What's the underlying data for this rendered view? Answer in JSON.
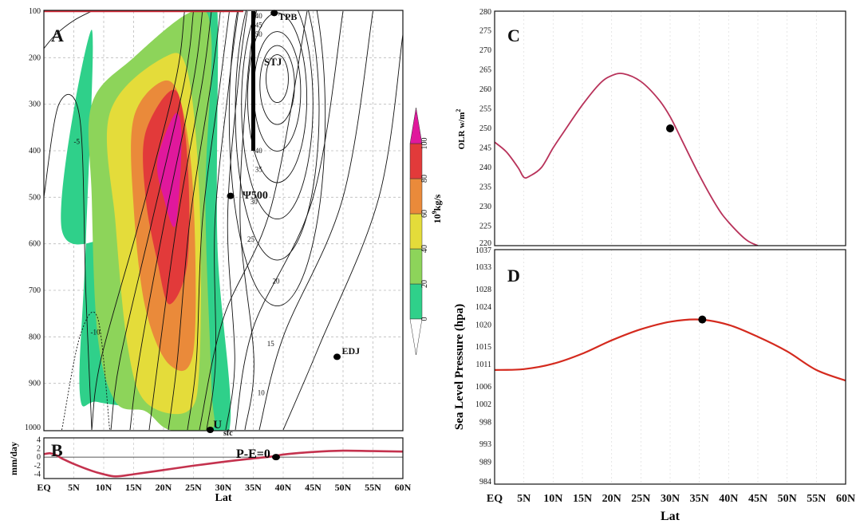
{
  "chart_data": [
    {
      "panel": "A",
      "type": "heatmap",
      "y_ticks": [
        "100",
        "200",
        "300",
        "400",
        "500",
        "600",
        "700",
        "800",
        "900",
        "1000"
      ],
      "colorbar": {
        "label": "10⁹kg/s",
        "ticks": [
          "0",
          "20",
          "40",
          "60",
          "80",
          "100"
        ],
        "colors": [
          "#2fd08a",
          "#8dd45a",
          "#e4dc3a",
          "#ea8a3a",
          "#e23a3a",
          "#e0189c"
        ]
      },
      "shading_levels": [
        {
          "level": 0,
          "color": "#2fd08a",
          "region": [
            [
              3,
              570
            ],
            [
              15,
              570
            ],
            [
              24,
              585
            ],
            [
              26,
              400
            ],
            [
              27,
              100
            ],
            [
              29,
              100
            ],
            [
              29,
              600
            ],
            [
              31,
              1000
            ],
            [
              23,
              1000
            ],
            [
              18,
              960
            ],
            [
              9,
              940
            ],
            [
              6,
              920
            ],
            [
              7,
              600
            ],
            [
              8,
              140
            ]
          ]
        },
        {
          "level": 20,
          "color": "#8dd45a",
          "region": [
            [
              8,
              300
            ],
            [
              15,
              200
            ],
            [
              25,
              100
            ],
            [
              28,
              160
            ],
            [
              27,
              500
            ],
            [
              28,
              900
            ],
            [
              28,
              1000
            ],
            [
              21,
              1000
            ],
            [
              17,
              960
            ],
            [
              12,
              940
            ],
            [
              9,
              800
            ],
            [
              8,
              500
            ]
          ]
        },
        {
          "level": 40,
          "color": "#e4dc3a",
          "region": [
            [
              11,
              320
            ],
            [
              20,
              200
            ],
            [
              24,
              230
            ],
            [
              26,
              500
            ],
            [
              26,
              860
            ],
            [
              24,
              960
            ],
            [
              17,
              940
            ],
            [
              14,
              820
            ],
            [
              12,
              560
            ]
          ]
        },
        {
          "level": 60,
          "color": "#ea8a3a",
          "region": [
            [
              15,
              330
            ],
            [
              20,
              250
            ],
            [
              23,
              300
            ],
            [
              25,
              500
            ],
            [
              25,
              830
            ],
            [
              21,
              860
            ],
            [
              17,
              740
            ],
            [
              15,
              520
            ]
          ]
        },
        {
          "level": 80,
          "color": "#e23a3a",
          "region": [
            [
              17,
              360
            ],
            [
              22,
              270
            ],
            [
              24,
              420
            ],
            [
              24,
              640
            ],
            [
              21,
              730
            ],
            [
              19,
              640
            ],
            [
              17,
              500
            ]
          ]
        },
        {
          "level": 100,
          "color": "#e0189c",
          "region": [
            [
              19,
              420
            ],
            [
              22,
              320
            ],
            [
              23,
              380
            ],
            [
              22,
              560
            ],
            [
              20,
              500
            ]
          ]
        }
      ],
      "u_contour_labels": [
        {
          "text": "40",
          "lat": 35.3,
          "p": 110
        },
        {
          "text": "45",
          "lat": 35.3,
          "p": 130
        },
        {
          "text": "50",
          "lat": 35.3,
          "p": 150
        },
        {
          "text": "40",
          "lat": 35.3,
          "p": 400
        },
        {
          "text": "35",
          "lat": 35.3,
          "p": 440
        },
        {
          "text": "30",
          "lat": 34.5,
          "p": 510
        },
        {
          "text": "25",
          "lat": 34.0,
          "p": 590
        },
        {
          "text": "20",
          "lat": 38.2,
          "p": 680
        },
        {
          "text": "15",
          "lat": 37.3,
          "p": 815
        },
        {
          "text": "10",
          "lat": 35.7,
          "p": 920
        },
        {
          "text": "-5",
          "lat": 5.0,
          "p": 380
        },
        {
          "text": "-10",
          "lat": 7.8,
          "p": 790
        }
      ],
      "annotations": [
        {
          "text": "TPB",
          "lat": 39.2,
          "p": 112
        },
        {
          "text": "STJ",
          "lat": 36.8,
          "p": 210
        },
        {
          "text": "Ψ500",
          "lat": 33.2,
          "p": 496
        },
        {
          "text": "EDJ",
          "lat": 49.8,
          "p": 830
        },
        {
          "text": "U",
          "lat": 28.3,
          "p": 990
        },
        {
          "text": "sfc",
          "lat": 30.0,
          "p": 1005
        }
      ],
      "markers": [
        {
          "name": "TPB",
          "lat": 38.5,
          "p": 104
        },
        {
          "name": "Psi500",
          "lat": 31.2,
          "p": 497
        },
        {
          "name": "EDJ",
          "lat": 49.0,
          "p": 843
        },
        {
          "name": "Usfc",
          "lat": 27.8,
          "p": 1000
        }
      ],
      "stj_bar": {
        "lat": 35.0,
        "p_top": 100,
        "p_bottom": 400
      },
      "ylim": [
        1000,
        100
      ]
    },
    {
      "panel": "B",
      "type": "line",
      "ylabel": "mm/day",
      "y_ticks": [
        4,
        2,
        0,
        -2,
        -4
      ],
      "ylim": [
        -5,
        4.5
      ],
      "x": [
        0,
        1,
        2,
        3,
        5,
        8,
        10,
        12,
        15,
        20,
        25,
        30,
        35,
        38.5,
        40,
        45,
        50,
        55,
        60
      ],
      "values": [
        0.7,
        0.9,
        0.5,
        -0.3,
        -1.6,
        -3.2,
        -4.0,
        -4.5,
        -4.0,
        -3.0,
        -2.0,
        -1.1,
        -0.3,
        0.2,
        0.6,
        1.2,
        1.5,
        1.4,
        1.3
      ],
      "line_color": "#c4324e",
      "marker": {
        "lat": 38.8,
        "value": 0
      },
      "annotation": "P-E=0"
    },
    {
      "panel": "C",
      "type": "line",
      "ylabel": "OLR w/m²",
      "y_ticks": [
        280,
        275,
        270,
        265,
        260,
        255,
        250,
        245,
        240,
        235,
        230,
        225,
        220
      ],
      "ylim": [
        220,
        280
      ],
      "x": [
        0,
        2,
        4,
        5,
        6,
        8,
        10,
        12,
        15,
        18,
        20,
        22,
        25,
        28,
        30,
        32,
        35,
        38,
        40,
        43,
        45
      ],
      "values": [
        246.5,
        244,
        240,
        237.5,
        237.8,
        240,
        245,
        249.5,
        256,
        261.5,
        263.5,
        264,
        262,
        257.5,
        253,
        247,
        238,
        230,
        226,
        221.5,
        220
      ],
      "line_color": "#b8325a",
      "marker": {
        "lat": 30,
        "value": 250
      }
    },
    {
      "panel": "D",
      "type": "line",
      "ylabel": "Sea Level Pressure (hpa)",
      "xlabel": "Lat",
      "y_ticks": [
        1037,
        1033,
        1028,
        1024,
        1020,
        1015,
        1011,
        1006,
        1002,
        998,
        993,
        989,
        984
      ],
      "ylim": [
        984,
        1037
      ],
      "x": [
        0,
        5,
        10,
        15,
        20,
        25,
        30,
        35,
        40,
        45,
        50,
        55,
        60
      ],
      "values": [
        1009.8,
        1010.0,
        1011.2,
        1013.5,
        1016.5,
        1019.0,
        1020.7,
        1021.2,
        1020.0,
        1017.3,
        1014.0,
        1009.8,
        1007.4
      ],
      "line_color": "#d42a1e",
      "marker": {
        "lat": 35.5,
        "value": 1021.2
      }
    }
  ],
  "x_ticks": [
    "EQ",
    "5N",
    "10N",
    "15N",
    "20N",
    "25N",
    "30N",
    "35N",
    "40N",
    "45N",
    "50N",
    "55N",
    "60N"
  ],
  "xlabel": "Lat",
  "labels": {
    "panel_a": "A",
    "panel_b": "B",
    "panel_c": "C",
    "panel_d": "D",
    "b_annotation": "P-E=0",
    "b_ylabel": "mm/day",
    "c_ylabel": "OLR w/m",
    "c_ylabel_sup": "2",
    "d_ylabel": "Sea Level Pressure (hpa)",
    "colorbar_label": "10",
    "colorbar_label_sup": "9",
    "colorbar_label_unit": "kg/s"
  }
}
